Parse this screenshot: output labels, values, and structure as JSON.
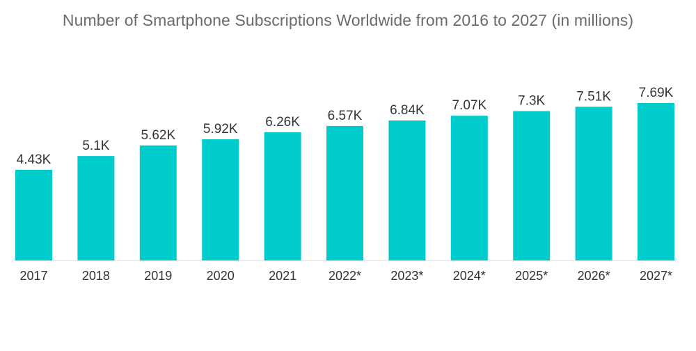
{
  "chart_data": {
    "type": "bar",
    "title": "Number of Smartphone Subscriptions Worldwide from 2016 to 2027 (in millions)",
    "xlabel": "",
    "ylabel": "",
    "categories": [
      "2017",
      "2018",
      "2019",
      "2020",
      "2021",
      "2022*",
      "2023*",
      "2024*",
      "2025*",
      "2026*",
      "2027*"
    ],
    "values": [
      4.43,
      5.1,
      5.62,
      5.92,
      6.26,
      6.57,
      6.84,
      7.07,
      7.3,
      7.51,
      7.69
    ],
    "value_labels": [
      "4.43K",
      "5.1K",
      "5.62K",
      "5.92K",
      "6.26K",
      "6.57K",
      "6.84K",
      "7.07K",
      "7.3K",
      "7.51K",
      "7.69K"
    ],
    "ylim": [
      0,
      7.69
    ],
    "grid": false,
    "legend": "none",
    "bar_color": "#00CCCC"
  }
}
